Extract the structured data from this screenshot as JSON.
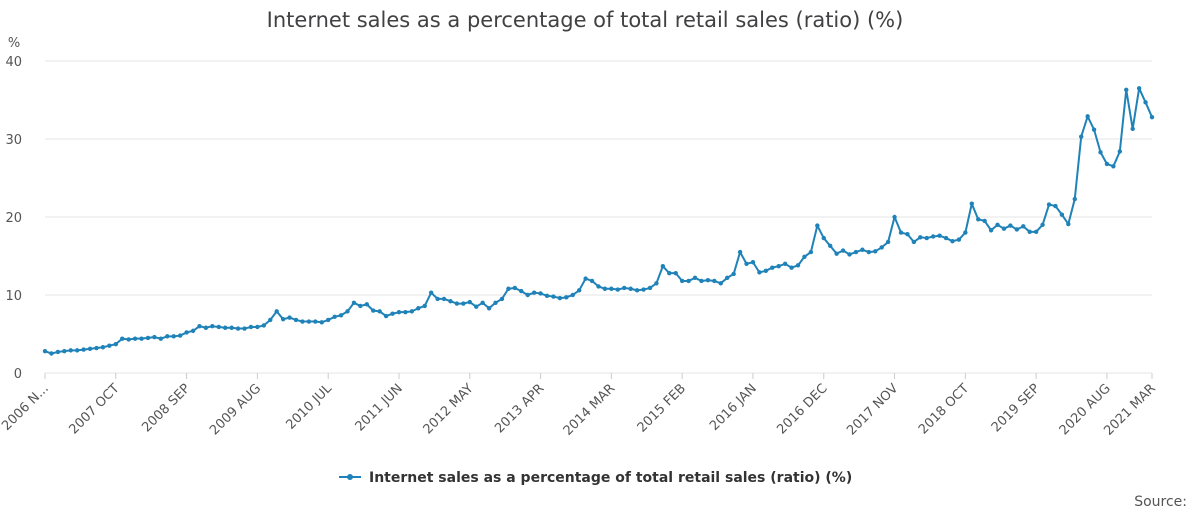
{
  "chart_data": {
    "type": "line",
    "title": "Internet sales as a percentage of total retail sales (ratio) (%)",
    "ylabel": "%",
    "xlabel": "",
    "ylim": [
      0,
      40
    ],
    "yticks": [
      "0",
      "10",
      "20",
      "30",
      "40"
    ],
    "x_tick_labels": [
      "2006 N...",
      "2007 OCT",
      "2008 SEP",
      "2009 AUG",
      "2010 JUL",
      "2011 JUN",
      "2012 MAY",
      "2013 APR",
      "2014 MAR",
      "2015 FEB",
      "2016 JAN",
      "2016 DEC",
      "2017 NOV",
      "2018 OCT",
      "2019 SEP",
      "2020 AUG",
      "2021 MAR"
    ],
    "x_tick_index": [
      0,
      11,
      22,
      33,
      44,
      55,
      66,
      77,
      88,
      99,
      110,
      121,
      132,
      143,
      154,
      165,
      172
    ],
    "series": [
      {
        "name": "Internet sales as a percentage of total retail sales (ratio) (%)",
        "color": "#1f82b8",
        "start": "2006 Nov",
        "values": [
          2.8,
          2.5,
          2.7,
          2.8,
          2.9,
          2.9,
          3.0,
          3.1,
          3.2,
          3.3,
          3.5,
          3.7,
          4.4,
          4.3,
          4.4,
          4.4,
          4.5,
          4.6,
          4.4,
          4.7,
          4.7,
          4.8,
          5.2,
          5.4,
          6.0,
          5.8,
          6.0,
          5.9,
          5.8,
          5.8,
          5.7,
          5.7,
          5.9,
          5.9,
          6.1,
          6.8,
          7.9,
          6.9,
          7.1,
          6.8,
          6.6,
          6.6,
          6.6,
          6.5,
          6.8,
          7.2,
          7.4,
          7.9,
          9.0,
          8.6,
          8.8,
          8.0,
          7.9,
          7.3,
          7.6,
          7.8,
          7.8,
          7.9,
          8.3,
          8.6,
          10.3,
          9.5,
          9.5,
          9.2,
          8.9,
          8.9,
          9.1,
          8.5,
          9.0,
          8.3,
          9.0,
          9.5,
          10.8,
          10.9,
          10.5,
          10.0,
          10.3,
          10.2,
          9.9,
          9.8,
          9.6,
          9.7,
          10.0,
          10.6,
          12.1,
          11.8,
          11.1,
          10.8,
          10.8,
          10.7,
          10.9,
          10.8,
          10.6,
          10.7,
          10.9,
          11.5,
          13.7,
          12.8,
          12.8,
          11.8,
          11.8,
          12.2,
          11.8,
          11.9,
          11.8,
          11.5,
          12.2,
          12.7,
          15.5,
          14.0,
          14.2,
          12.9,
          13.1,
          13.5,
          13.7,
          14.0,
          13.5,
          13.8,
          14.9,
          15.5,
          18.9,
          17.3,
          16.3,
          15.3,
          15.7,
          15.2,
          15.5,
          15.8,
          15.5,
          15.6,
          16.1,
          16.8,
          20.0,
          18.0,
          17.8,
          16.8,
          17.4,
          17.3,
          17.5,
          17.6,
          17.3,
          16.9,
          17.1,
          18.0,
          21.7,
          19.7,
          19.5,
          18.3,
          19.0,
          18.5,
          18.9,
          18.4,
          18.8,
          18.1,
          18.1,
          19.0,
          21.6,
          21.4,
          20.3,
          19.1,
          22.3,
          30.3,
          32.9,
          31.2,
          28.3,
          26.8,
          26.5,
          28.4,
          36.3,
          31.3,
          36.5,
          34.7,
          32.8
        ]
      }
    ],
    "legend": {
      "label": "Internet sales as a percentage of total retail sales (ratio) (%)",
      "position": "bottom-center"
    }
  },
  "footer": {
    "source_label": "Source:"
  }
}
